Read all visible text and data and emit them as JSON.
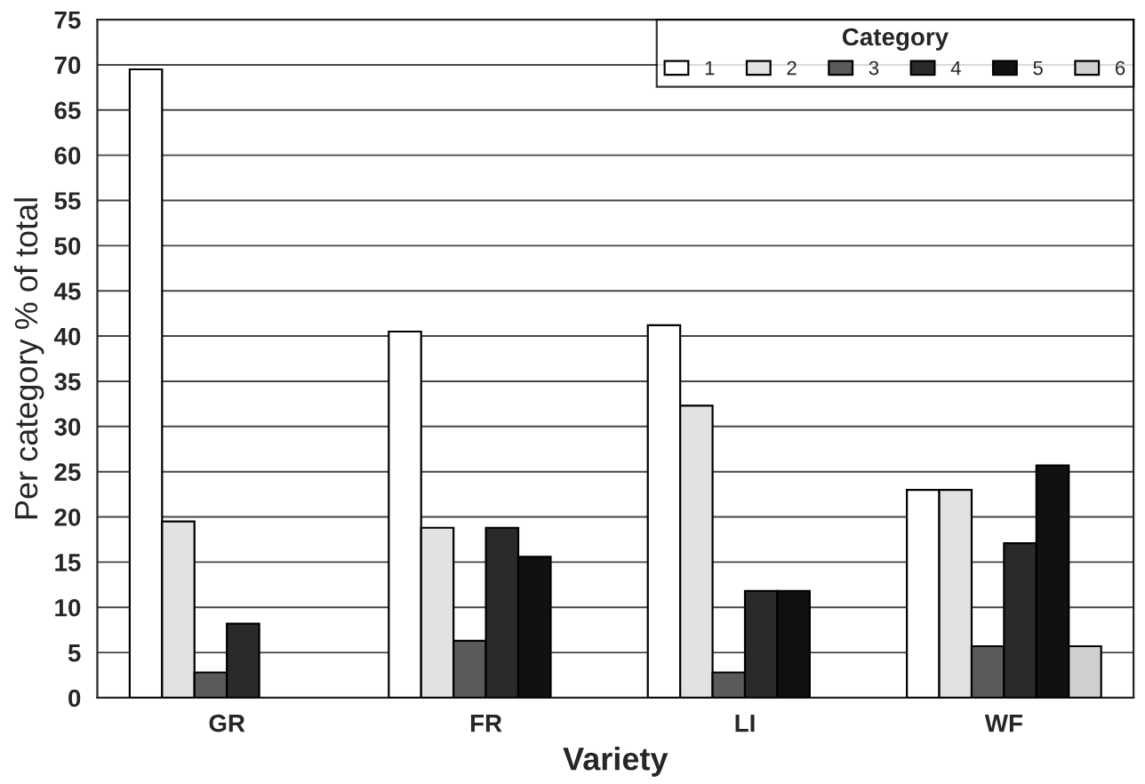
{
  "chart_data": {
    "type": "bar",
    "xlabel": "Variety",
    "ylabel": "Per category % of total",
    "legend_title": "Category",
    "categories": [
      "GR",
      "FR",
      "LI",
      "WF"
    ],
    "series": [
      {
        "name": "1",
        "color": "#ffffff",
        "values": [
          69.5,
          40.5,
          41.2,
          23
        ]
      },
      {
        "name": "2",
        "color": "#e2e2e2",
        "values": [
          19.5,
          18.8,
          32.3,
          23
        ]
      },
      {
        "name": "3",
        "color": "#5a5a5a",
        "values": [
          2.8,
          6.3,
          2.8,
          5.7
        ]
      },
      {
        "name": "4",
        "color": "#2a2a2a",
        "values": [
          8.2,
          18.8,
          11.8,
          17.1
        ]
      },
      {
        "name": "5",
        "color": "#111111",
        "values": [
          null,
          15.6,
          11.8,
          25.7
        ]
      },
      {
        "name": "6",
        "color": "#d0d0d0",
        "values": [
          null,
          null,
          null,
          5.7
        ]
      }
    ],
    "ylim": [
      0,
      75
    ],
    "yticks": [
      0,
      5,
      10,
      15,
      20,
      25,
      30,
      35,
      40,
      45,
      50,
      55,
      60,
      65,
      70,
      75
    ],
    "grid": "y",
    "legend": "top right"
  }
}
